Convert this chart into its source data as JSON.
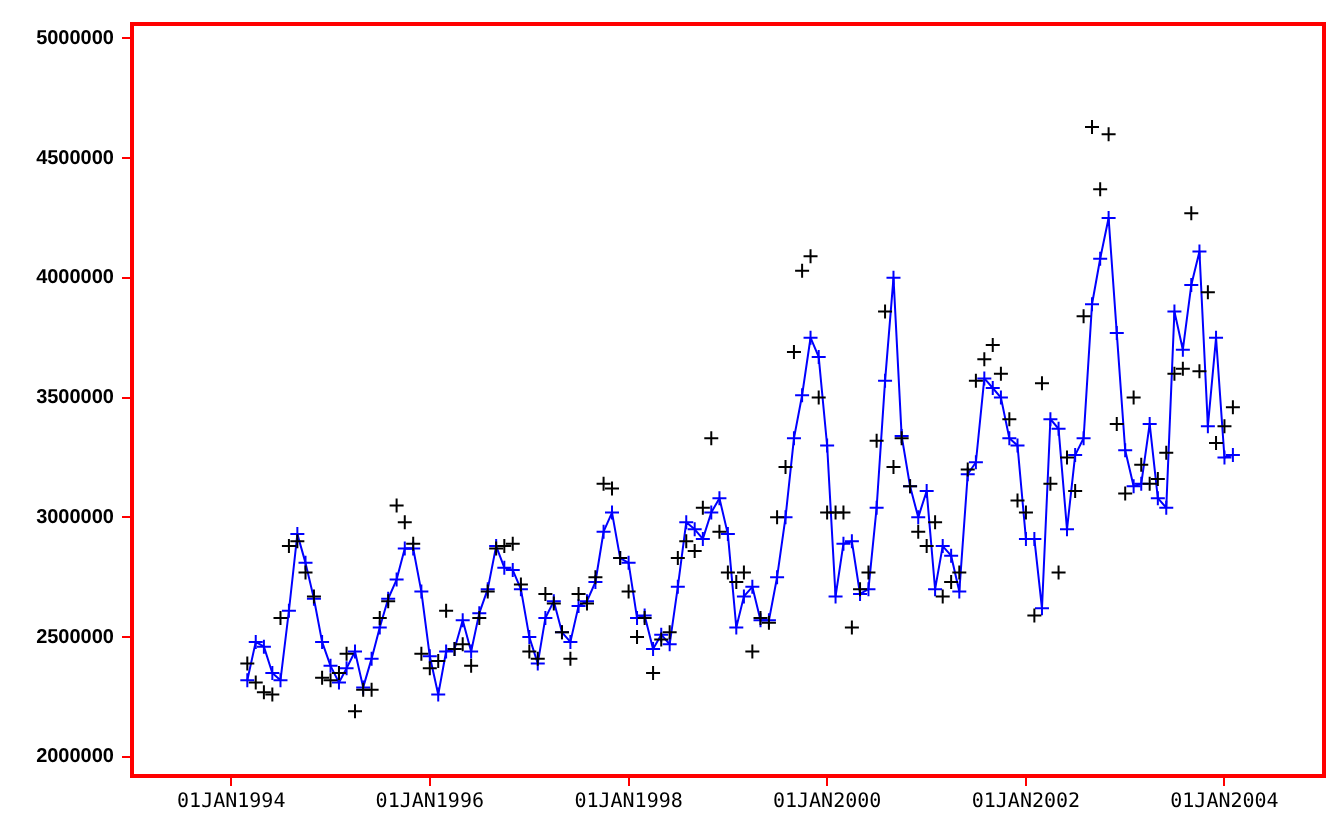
{
  "chart_data": {
    "type": "line",
    "x": [
      "1994-03",
      "1994-04",
      "1994-05",
      "1994-06",
      "1994-07",
      "1994-08",
      "1994-09",
      "1994-10",
      "1994-11",
      "1994-12",
      "1995-01",
      "1995-02",
      "1995-03",
      "1995-04",
      "1995-05",
      "1995-06",
      "1995-07",
      "1995-08",
      "1995-09",
      "1995-10",
      "1995-11",
      "1995-12",
      "1996-01",
      "1996-02",
      "1996-03",
      "1996-04",
      "1996-05",
      "1996-06",
      "1996-07",
      "1996-08",
      "1996-09",
      "1996-10",
      "1996-11",
      "1996-12",
      "1997-01",
      "1997-02",
      "1997-03",
      "1997-04",
      "1997-05",
      "1997-06",
      "1997-07",
      "1997-08",
      "1997-09",
      "1997-10",
      "1997-11",
      "1997-12",
      "1998-01",
      "1998-02",
      "1998-03",
      "1998-04",
      "1998-05",
      "1998-06",
      "1998-07",
      "1998-08",
      "1998-09",
      "1998-10",
      "1998-11",
      "1998-12",
      "1999-01",
      "1999-02",
      "1999-03",
      "1999-04",
      "1999-05",
      "1999-06",
      "1999-07",
      "1999-08",
      "1999-09",
      "1999-10",
      "1999-11",
      "1999-12",
      "2000-01",
      "2000-02",
      "2000-03",
      "2000-04",
      "2000-05",
      "2000-06",
      "2000-07",
      "2000-08",
      "2000-09",
      "2000-10",
      "2000-11",
      "2000-12",
      "2001-01",
      "2001-02",
      "2001-03",
      "2001-04",
      "2001-05",
      "2001-06",
      "2001-07",
      "2001-08",
      "2001-09",
      "2001-10",
      "2001-11",
      "2001-12",
      "2002-01",
      "2002-02",
      "2002-03",
      "2002-04",
      "2002-05",
      "2002-06",
      "2002-07",
      "2002-08",
      "2002-09",
      "2002-10",
      "2002-11",
      "2002-12",
      "2003-01",
      "2003-02",
      "2003-03",
      "2003-04",
      "2003-05",
      "2003-06",
      "2003-07",
      "2003-08",
      "2003-09",
      "2003-10",
      "2003-11",
      "2003-12",
      "2004-01",
      "2004-02"
    ],
    "series": [
      {
        "type": "line",
        "color": "#0000ff",
        "marker": "cross",
        "values": [
          2320000,
          2480000,
          2460000,
          2350000,
          2320000,
          2610000,
          2930000,
          2810000,
          2660000,
          2480000,
          2380000,
          2310000,
          2370000,
          2440000,
          2290000,
          2410000,
          2540000,
          2660000,
          2740000,
          2870000,
          2870000,
          2690000,
          2420000,
          2260000,
          2440000,
          2450000,
          2570000,
          2440000,
          2600000,
          2700000,
          2880000,
          2790000,
          2780000,
          2700000,
          2500000,
          2390000,
          2580000,
          2650000,
          2520000,
          2480000,
          2630000,
          2650000,
          2730000,
          2940000,
          3020000,
          2830000,
          2810000,
          2580000,
          2590000,
          2450000,
          2510000,
          2470000,
          2710000,
          2980000,
          2950000,
          2910000,
          3020000,
          3080000,
          2930000,
          2540000,
          2670000,
          2710000,
          2570000,
          2570000,
          2750000,
          3000000,
          3330000,
          3510000,
          3750000,
          3670000,
          3300000,
          2670000,
          2890000,
          2900000,
          2680000,
          2700000,
          3040000,
          3570000,
          4000000,
          3340000,
          3130000,
          3000000,
          3110000,
          2700000,
          2880000,
          2840000,
          2690000,
          3180000,
          3230000,
          3580000,
          3540000,
          3500000,
          3330000,
          3300000,
          2910000,
          2910000,
          2620000,
          3410000,
          3370000,
          2950000,
          3260000,
          3330000,
          3890000,
          4080000,
          4250000,
          3770000,
          3280000,
          3130000,
          3140000,
          3390000,
          3080000,
          3040000,
          3860000,
          3700000,
          3970000,
          4110000,
          3380000,
          3750000,
          3250000,
          3260000
        ]
      },
      {
        "type": "scatter",
        "color": "#000000",
        "marker": "cross",
        "values": [
          2390000,
          2310000,
          2270000,
          2260000,
          2580000,
          2880000,
          2900000,
          2770000,
          2670000,
          2330000,
          2320000,
          2350000,
          2430000,
          2190000,
          2280000,
          2280000,
          2580000,
          2650000,
          3050000,
          2980000,
          2890000,
          2430000,
          2370000,
          2400000,
          2610000,
          2450000,
          2470000,
          2380000,
          2580000,
          2690000,
          2870000,
          2880000,
          2890000,
          2720000,
          2440000,
          2410000,
          2680000,
          2640000,
          2520000,
          2410000,
          2680000,
          2640000,
          2750000,
          3140000,
          3120000,
          2830000,
          2690000,
          2500000,
          2580000,
          2350000,
          2490000,
          2520000,
          2830000,
          2900000,
          2860000,
          3040000,
          3330000,
          2940000,
          2770000,
          2730000,
          2770000,
          2440000,
          2580000,
          2560000,
          3000000,
          3210000,
          3690000,
          4030000,
          4090000,
          3500000,
          3020000,
          3020000,
          3020000,
          2540000,
          2700000,
          2770000,
          3320000,
          3860000,
          3210000,
          3330000,
          3130000,
          2940000,
          2880000,
          2980000,
          2670000,
          2730000,
          2770000,
          3200000,
          3570000,
          3660000,
          3720000,
          3600000,
          3410000,
          3070000,
          3020000,
          2590000,
          3560000,
          3140000,
          2770000,
          3250000,
          3110000,
          3840000,
          4630000,
          4370000,
          4600000,
          3390000,
          3100000,
          3500000,
          3220000,
          3140000,
          3160000,
          3270000,
          3600000,
          3620000,
          4270000,
          3610000,
          3940000,
          3310000,
          3380000,
          3460000
        ]
      }
    ],
    "xlim": [
      "1993-01-01",
      "2005-01-01"
    ],
    "xticks": [
      {
        "value": "1994-01-01",
        "label": "01JAN1994"
      },
      {
        "value": "1996-01-01",
        "label": "01JAN1996"
      },
      {
        "value": "1998-01-01",
        "label": "01JAN1998"
      },
      {
        "value": "2000-01-01",
        "label": "01JAN2000"
      },
      {
        "value": "2002-01-01",
        "label": "01JAN2002"
      },
      {
        "value": "2004-01-01",
        "label": "01JAN2004"
      }
    ],
    "ylim": [
      1920000,
      5060000
    ],
    "yticks": [
      2000000,
      2500000,
      3000000,
      3500000,
      4000000,
      4500000,
      5000000
    ],
    "grid": false,
    "legend": false
  }
}
